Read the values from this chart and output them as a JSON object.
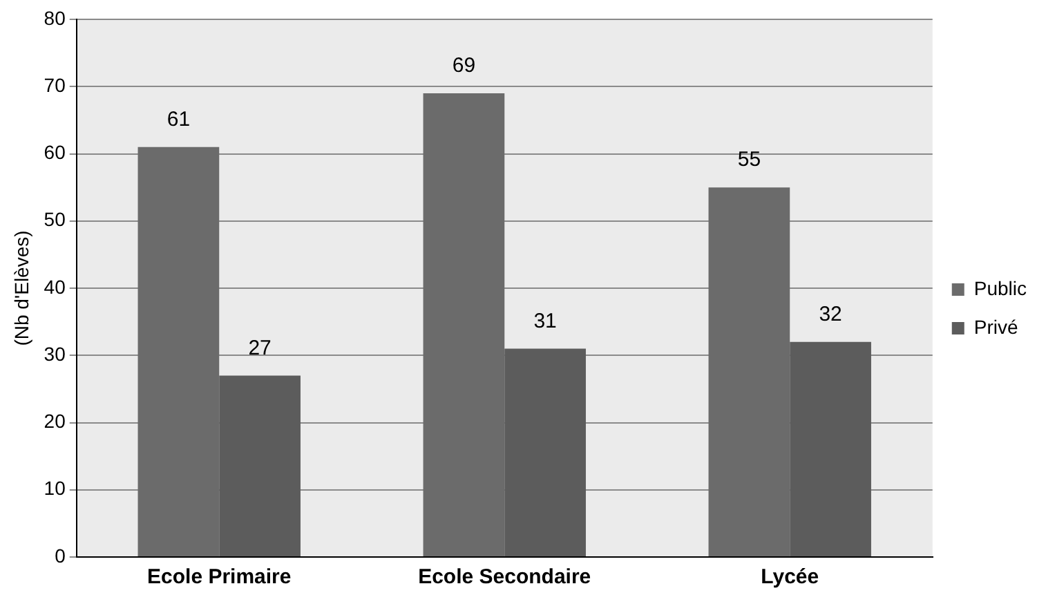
{
  "chart_data": {
    "type": "bar",
    "ylabel": "(Nb d'Elèves)",
    "categories": [
      "Ecole Primaire",
      "Ecole Secondaire",
      "Lycée"
    ],
    "series": [
      {
        "name": "Public",
        "color": "#6b6b6b",
        "values": [
          61,
          69,
          55
        ]
      },
      {
        "name": "Privé",
        "color": "#5c5c5c",
        "values": [
          27,
          31,
          32
        ]
      }
    ],
    "ylim": [
      0,
      80
    ],
    "yticks": [
      0,
      10,
      20,
      30,
      40,
      50,
      60,
      70,
      80
    ],
    "grid": "y",
    "legend": "right",
    "data_labels": true
  }
}
